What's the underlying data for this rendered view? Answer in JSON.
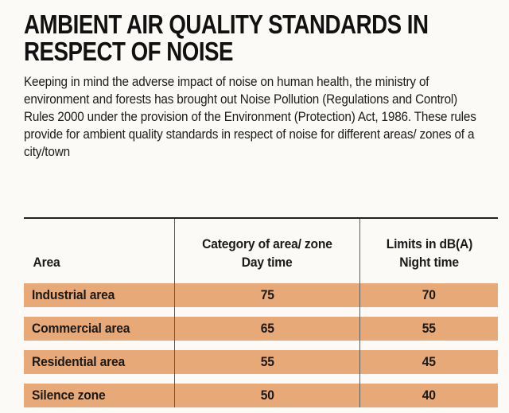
{
  "title_lines": [
    "AMBIENT AIR QUALITY STANDARDS IN",
    "RESPECT OF NOISE"
  ],
  "intro": "Keeping in mind the adverse impact of noise on human health, the ministry of environment and forests has brought out Noise Pollution (Regulations and Control) Rules 2000 under the provision of the Environment (Protection) Act, 1986.  These rules provide for ambient quality standards in respect of noise for different areas/ zones of a city/town",
  "table": {
    "headers": {
      "area": "Area",
      "day_line1": "Category of area/ zone",
      "day_line2": "Day time",
      "night_line1": "Limits in dB(A)",
      "night_line2": "Night time"
    },
    "rows": [
      {
        "area": "Industrial area",
        "day": "75",
        "night": "70"
      },
      {
        "area": "Commercial area",
        "day": "65",
        "night": "55"
      },
      {
        "area": "Residential area",
        "day": "55",
        "night": "45"
      },
      {
        "area": "Silence zone",
        "day": "50",
        "night": "40"
      }
    ]
  },
  "colors": {
    "row_band": "#e8a978",
    "background": "#fbfaf6",
    "text": "#1a1a1a"
  }
}
